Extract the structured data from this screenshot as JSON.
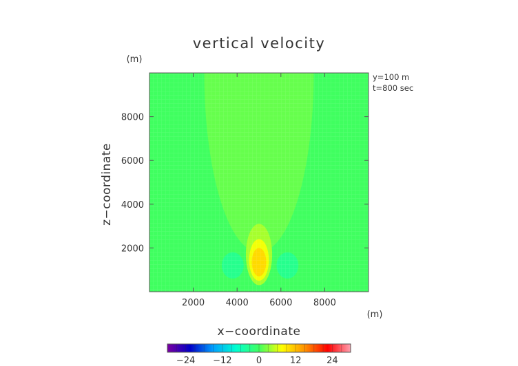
{
  "chart_data": {
    "type": "heatmap",
    "title": "vertical velocity",
    "xlabel": "x−coordinate",
    "ylabel": "z−coordinate",
    "x_unit": "(m)",
    "z_unit": "(m)",
    "xlim": [
      0,
      10000
    ],
    "ylim": [
      0,
      10000
    ],
    "x_ticks": [
      2000,
      4000,
      6000,
      8000
    ],
    "y_ticks": [
      2000,
      4000,
      6000,
      8000
    ],
    "x_tick_labels": [
      "2000",
      "4000",
      "6000",
      "8000"
    ],
    "y_tick_labels": [
      "2000",
      "4000",
      "6000",
      "8000"
    ],
    "annotations": [
      "y=100 m",
      "t=800 sec"
    ],
    "grid": false,
    "background_value": 0,
    "features": [
      {
        "name": "plume",
        "shape": "half-ellipse",
        "cx": 5000,
        "top": 10000,
        "bottom": 1800,
        "half_width_top": 2500,
        "value": 1.5
      },
      {
        "name": "core-outer",
        "shape": "ellipse",
        "cx": 5000,
        "cz": 1700,
        "rx": 600,
        "rz": 1400,
        "value": 4
      },
      {
        "name": "core-mid",
        "shape": "ellipse",
        "cx": 5000,
        "cz": 1450,
        "rx": 450,
        "rz": 950,
        "value": 7
      },
      {
        "name": "core-inner",
        "shape": "ellipse",
        "cx": 5000,
        "cz": 1350,
        "rx": 330,
        "rz": 650,
        "value": 10
      },
      {
        "name": "downdraft-left",
        "shape": "ellipse",
        "cx": 3800,
        "cz": 1200,
        "rx": 500,
        "rz": 600,
        "value": -3
      },
      {
        "name": "downdraft-right",
        "shape": "ellipse",
        "cx": 6300,
        "cz": 1200,
        "rx": 500,
        "rz": 600,
        "value": -3
      }
    ],
    "colorbar": {
      "range": [
        -30,
        30
      ],
      "ticks": [
        -24,
        -12,
        0,
        12,
        24
      ],
      "tick_labels": [
        "−24",
        "−12",
        "0",
        "12",
        "24"
      ],
      "colors": [
        "#7a00a0",
        "#0000c8",
        "#00a0ff",
        "#00ffd0",
        "#40ff60",
        "#ffff00",
        "#ff9000",
        "#ff0000",
        "#ffa0b0"
      ]
    }
  }
}
